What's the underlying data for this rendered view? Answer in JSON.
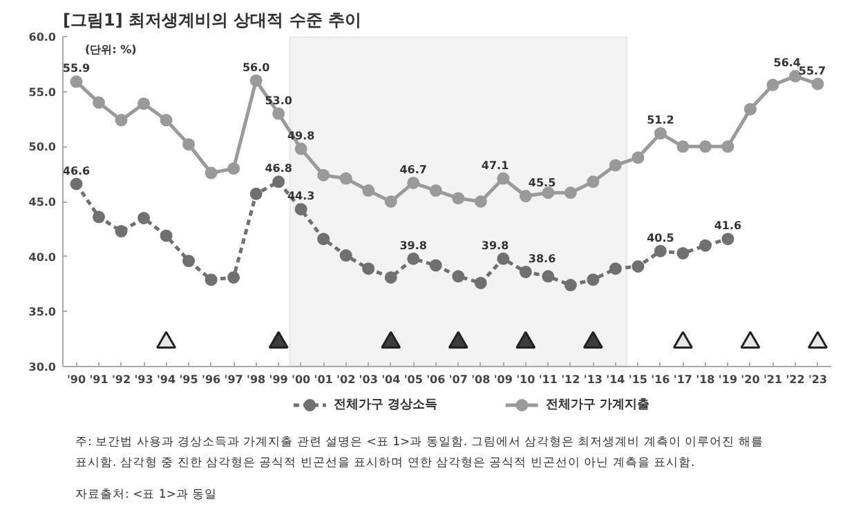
{
  "chart_data": {
    "type": "line",
    "title": "[그림1] 최저생계비의 상대적 수준 추이",
    "x": [
      1990,
      1991,
      1992,
      1993,
      1994,
      1995,
      1996,
      1997,
      1998,
      1999,
      2000,
      2001,
      2002,
      2003,
      2004,
      2005,
      2006,
      2007,
      2008,
      2009,
      2010,
      2011,
      2012,
      2013,
      2014,
      2015,
      2016,
      2017,
      2018,
      2019,
      2020,
      2021,
      2022,
      2023
    ],
    "series": [
      {
        "name": "전체가구 경상소득",
        "color": "#707070",
        "line_style": "dashed",
        "marker": "circle",
        "values": [
          46.6,
          43.6,
          42.3,
          43.5,
          41.9,
          39.6,
          37.9,
          38.1,
          45.7,
          46.8,
          44.3,
          41.6,
          40.1,
          38.9,
          38.1,
          39.8,
          39.2,
          38.2,
          37.6,
          39.8,
          38.6,
          38.2,
          37.4,
          37.9,
          38.9,
          39.1,
          40.5,
          40.3,
          41.0,
          41.6,
          null,
          null,
          null,
          null
        ],
        "value_labels": [
          "46.6",
          null,
          null,
          null,
          null,
          null,
          null,
          null,
          null,
          "46.8",
          "44.3",
          null,
          null,
          null,
          null,
          "39.8",
          null,
          null,
          null,
          "39.8",
          "38.6",
          null,
          null,
          null,
          null,
          null,
          "40.5",
          null,
          null,
          "41.6",
          null,
          null,
          null,
          null
        ]
      },
      {
        "name": "전체가구 가계지출",
        "color": "#9a9a9a",
        "line_style": "solid",
        "marker": "circle",
        "values": [
          55.9,
          54.0,
          52.4,
          53.9,
          52.4,
          50.2,
          47.6,
          48.0,
          56.0,
          53.0,
          49.8,
          47.4,
          47.1,
          46.0,
          45.0,
          46.7,
          46.0,
          45.3,
          45.0,
          47.1,
          45.5,
          45.8,
          45.8,
          46.8,
          48.3,
          49.0,
          51.2,
          50.0,
          50.0,
          50.0,
          53.4,
          55.6,
          56.4,
          55.7
        ],
        "value_labels": [
          "55.9",
          null,
          null,
          null,
          null,
          null,
          null,
          null,
          "56.0",
          "53.0",
          "49.8",
          null,
          null,
          null,
          null,
          "46.7",
          null,
          null,
          null,
          "47.1",
          "45.5",
          null,
          null,
          null,
          null,
          null,
          "51.2",
          null,
          null,
          null,
          null,
          null,
          "56.4",
          "55.7"
        ]
      },
      {
        "type": "scatter",
        "marker": "triangle",
        "color": "#3c3c3c",
        "x": [
          1999,
          2004,
          2007,
          2010,
          2013
        ],
        "values": [
          32.2,
          32.2,
          32.2,
          32.2,
          32.2
        ]
      },
      {
        "type": "scatter",
        "marker": "triangle",
        "color": "#e6e6e6",
        "x": [
          1994,
          2017,
          2020,
          2023
        ],
        "values": [
          32.2,
          32.2,
          32.2,
          32.2
        ]
      }
    ],
    "xlim": [
      1989.4,
      2023.6
    ],
    "xticks": [
      {
        "value": 1990,
        "label": "'90"
      },
      {
        "value": 1991,
        "label": "'91"
      },
      {
        "value": 1992,
        "label": "'92"
      },
      {
        "value": 1993,
        "label": "'93"
      },
      {
        "value": 1994,
        "label": "'94"
      },
      {
        "value": 1995,
        "label": "'95"
      },
      {
        "value": 1996,
        "label": "'96"
      },
      {
        "value": 1997,
        "label": "'97"
      },
      {
        "value": 1998,
        "label": "'98"
      },
      {
        "value": 1999,
        "label": "'99"
      },
      {
        "value": 2000,
        "label": "'00"
      },
      {
        "value": 2001,
        "label": "'01"
      },
      {
        "value": 2002,
        "label": "'02"
      },
      {
        "value": 2003,
        "label": "'03"
      },
      {
        "value": 2004,
        "label": "'04"
      },
      {
        "value": 2005,
        "label": "'05"
      },
      {
        "value": 2006,
        "label": "'06"
      },
      {
        "value": 2007,
        "label": "'07"
      },
      {
        "value": 2008,
        "label": "'08"
      },
      {
        "value": 2009,
        "label": "'09"
      },
      {
        "value": 2010,
        "label": "'10"
      },
      {
        "value": 2011,
        "label": "'11"
      },
      {
        "value": 2012,
        "label": "'12"
      },
      {
        "value": 2013,
        "label": "'13"
      },
      {
        "value": 2014,
        "label": "'14"
      },
      {
        "value": 2015,
        "label": "'15"
      },
      {
        "value": 2016,
        "label": "'16"
      },
      {
        "value": 2017,
        "label": "'17"
      },
      {
        "value": 2018,
        "label": "'18"
      },
      {
        "value": 2019,
        "label": "'19"
      },
      {
        "value": 2020,
        "label": "'20"
      },
      {
        "value": 2021,
        "label": "'21"
      },
      {
        "value": 2022,
        "label": "'22"
      },
      {
        "value": 2023,
        "label": "'23"
      }
    ],
    "ylim": [
      30,
      60
    ],
    "yticks": [
      {
        "value": 30,
        "label": "30.0"
      },
      {
        "value": 35,
        "label": "35.0"
      },
      {
        "value": 40,
        "label": "40.0"
      },
      {
        "value": 45,
        "label": "45.0"
      },
      {
        "value": 50,
        "label": "50.0"
      },
      {
        "value": 55,
        "label": "55.0"
      },
      {
        "value": 60,
        "label": "60.0"
      }
    ],
    "bands": [
      {
        "axis": "x",
        "from": 1999.5,
        "to": 2014.5,
        "color": "#f3f3f3"
      }
    ],
    "grid": false,
    "legend": "bottom",
    "annotations": [
      "(단위: %)",
      "주: 보간법 사용과 경상소득과 가계지출 관련 설명은 <표 1>과 동일함. 그림에서 삼각형은 최저생계비 계측이 이루어진 해를 표시함. 삼각형 중 진한 삼각형은 공식적 빈곤선을 표시하며 연한 삼각형은 공식적 빈곤선이 아닌 계측을 표시함.",
      "자료출처: <표 1>과 동일"
    ]
  }
}
